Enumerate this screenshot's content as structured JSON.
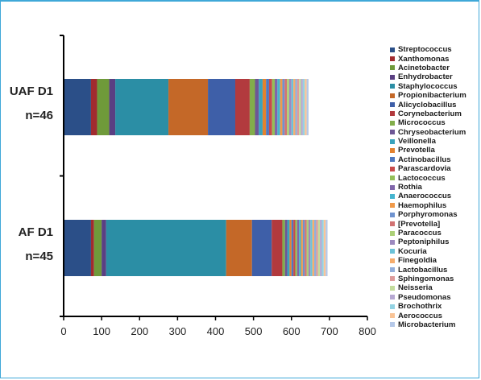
{
  "chart_data": {
    "type": "bar",
    "orientation": "horizontal",
    "stacked": true,
    "categories": [
      {
        "line1": "UAF D1",
        "line2": "n=46"
      },
      {
        "line1": "AF D1",
        "line2": "n=45"
      }
    ],
    "xlim": [
      0,
      800
    ],
    "xticks": [
      "0",
      "100",
      "200",
      "300",
      "400",
      "500",
      "600",
      "700",
      "800"
    ],
    "grid": false,
    "legend_position": "right",
    "series": [
      {
        "name": "Streptococcus",
        "color": "#2b4f88",
        "values": [
          72,
          72
        ]
      },
      {
        "name": "Xanthomonas",
        "color": "#a12b2f",
        "values": [
          16,
          8
        ]
      },
      {
        "name": "Acinetobacter",
        "color": "#6f9a3a",
        "values": [
          32,
          20
        ]
      },
      {
        "name": "Enhydrobacter",
        "color": "#5a3f82",
        "values": [
          16,
          12
        ]
      },
      {
        "name": "Staphylococcus",
        "color": "#2b8ea5",
        "values": [
          140,
          316
        ]
      },
      {
        "name": "Propionibacterium",
        "color": "#c46828",
        "values": [
          104,
          68
        ]
      },
      {
        "name": "Alicyclobacillus",
        "color": "#3e5fa8",
        "values": [
          72,
          52
        ]
      },
      {
        "name": "Corynebacterium",
        "color": "#b23a3e",
        "values": [
          38,
          28
        ]
      },
      {
        "name": "Micrococcus",
        "color": "#82ad4a",
        "values": [
          14,
          7
        ]
      },
      {
        "name": "Chryseobacterium",
        "color": "#6e5695",
        "values": [
          10,
          6
        ]
      },
      {
        "name": "Veillonella",
        "color": "#3aa3bd",
        "values": [
          10,
          6
        ]
      },
      {
        "name": "Prevotella",
        "color": "#e3822f",
        "values": [
          9,
          5
        ]
      },
      {
        "name": "Actinobacillus",
        "color": "#4e78c0",
        "values": [
          8,
          5
        ]
      },
      {
        "name": "Parascardovia",
        "color": "#c84b4b",
        "values": [
          8,
          5
        ]
      },
      {
        "name": "Lactococcus",
        "color": "#94bf58",
        "values": [
          7,
          5
        ]
      },
      {
        "name": "Rothia",
        "color": "#8066aa",
        "values": [
          7,
          5
        ]
      },
      {
        "name": "Anaerococcus",
        "color": "#45b5cf",
        "values": [
          7,
          5
        ]
      },
      {
        "name": "Haemophilus",
        "color": "#f09a4a",
        "values": [
          6,
          5
        ]
      },
      {
        "name": "Porphyromonas",
        "color": "#6f93cf",
        "values": [
          6,
          5
        ]
      },
      {
        "name": "[Prevotella]",
        "color": "#d27373",
        "values": [
          6,
          5
        ]
      },
      {
        "name": "Paracoccus",
        "color": "#acd077",
        "values": [
          6,
          5
        ]
      },
      {
        "name": "Peptoniphilus",
        "color": "#9c89bf",
        "values": [
          6,
          5
        ]
      },
      {
        "name": "Kocuria",
        "color": "#6cc3d9",
        "values": [
          5,
          5
        ]
      },
      {
        "name": "Finegoldia",
        "color": "#f6ad6d",
        "values": [
          5,
          5
        ]
      },
      {
        "name": "Lactobacillus",
        "color": "#92aedb",
        "values": [
          5,
          5
        ]
      },
      {
        "name": "Sphingomonas",
        "color": "#dd9b9b",
        "values": [
          5,
          5
        ]
      },
      {
        "name": "Neisseria",
        "color": "#c3dc9c",
        "values": [
          5,
          5
        ]
      },
      {
        "name": "Pseudomonas",
        "color": "#b6a8d2",
        "values": [
          5,
          5
        ]
      },
      {
        "name": "Brochothrix",
        "color": "#93d3e3",
        "values": [
          5,
          5
        ]
      },
      {
        "name": "Aerococcus",
        "color": "#f9c497",
        "values": [
          5,
          5
        ]
      },
      {
        "name": "Microbacterium",
        "color": "#b5c8e8",
        "values": [
          5,
          5
        ]
      }
    ]
  }
}
